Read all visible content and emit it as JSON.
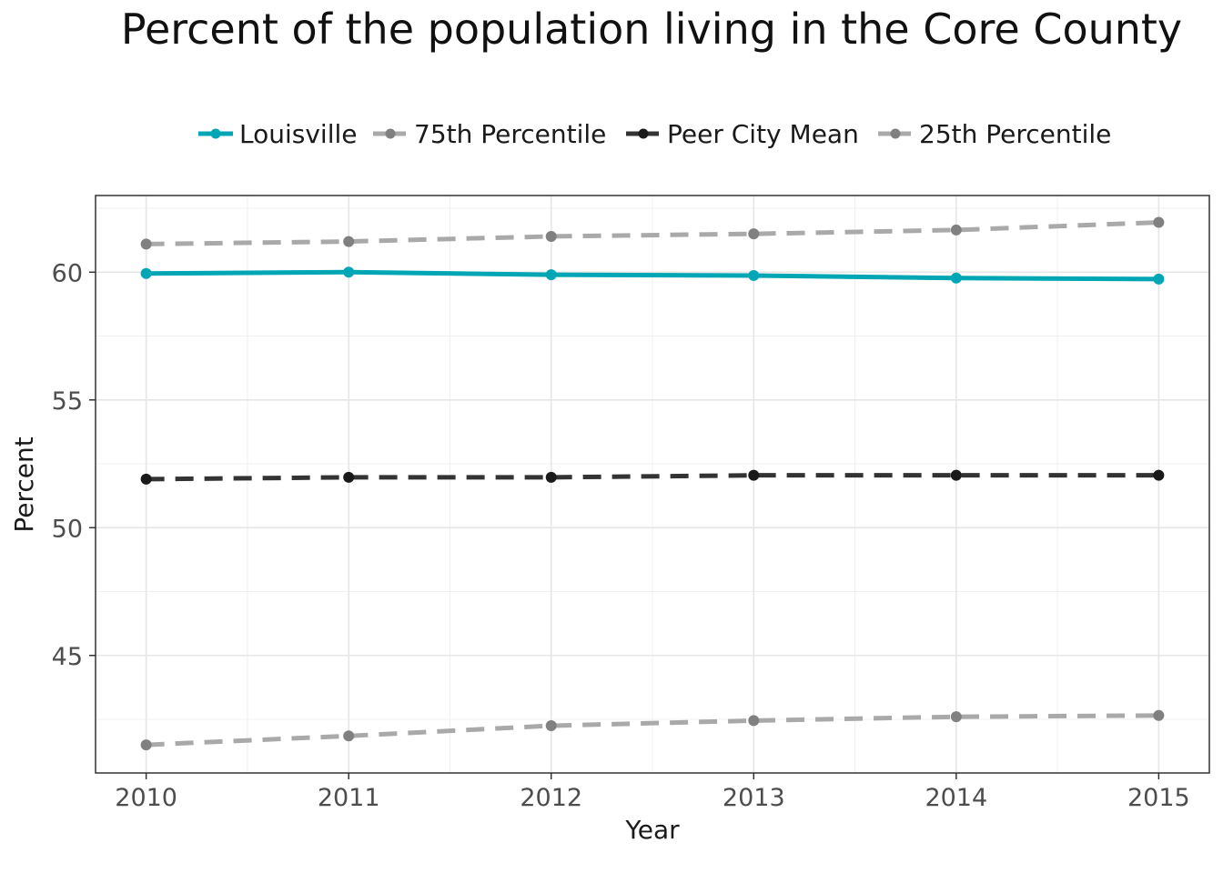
{
  "chart_data": {
    "type": "line",
    "title": "Percent of the population living in the Core County",
    "xlabel": "Year",
    "ylabel": "Percent",
    "x": [
      2010,
      2011,
      2012,
      2013,
      2014,
      2015
    ],
    "xlim": [
      2009.75,
      2015.25
    ],
    "ylim": [
      40.4,
      63.0
    ],
    "yticks": [
      45,
      50,
      55,
      60
    ],
    "grid": true,
    "legend_position": "top",
    "series": [
      {
        "name": "Louisville",
        "values": [
          59.95,
          60.0,
          59.9,
          59.87,
          59.77,
          59.73
        ],
        "color": "#00A6B4",
        "dashed": false
      },
      {
        "name": "75th Percentile",
        "values": [
          61.1,
          61.2,
          61.4,
          61.5,
          61.65,
          61.95
        ],
        "color": "#A9A9A9",
        "dashed": true
      },
      {
        "name": "Peer City Mean",
        "values": [
          51.9,
          51.97,
          51.97,
          52.05,
          52.05,
          52.05
        ],
        "color": "#333333",
        "dashed": true
      },
      {
        "name": "25th Percentile",
        "values": [
          41.5,
          41.85,
          42.25,
          42.45,
          42.6,
          42.65
        ],
        "color": "#A9A9A9",
        "dashed": true
      }
    ]
  }
}
